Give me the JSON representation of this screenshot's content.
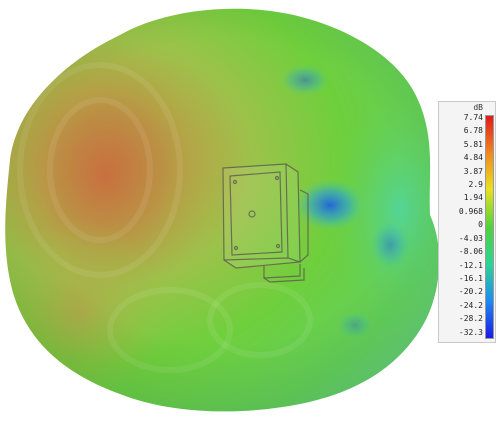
{
  "chart_data": {
    "type": "heatmap",
    "colorbar": {
      "unit": "dB",
      "ticks": [
        "7.74",
        "6.78",
        "5.81",
        "4.84",
        "3.87",
        "2.9",
        "1.94",
        "0.968",
        "0",
        "-4.03",
        "-8.06",
        "-12.1",
        "-16.1",
        "-20.2",
        "-24.2",
        "-28.2",
        "-32.3"
      ],
      "min": -32.3,
      "max": 7.74,
      "colors": [
        "#e2181c",
        "#f08a1e",
        "#e8e21e",
        "#52d23c",
        "#2ad496",
        "#1e8cf0",
        "#1a1ae8"
      ]
    },
    "legend_placement": "right"
  },
  "image": {
    "depicts": "3D far-field radiation pattern surface with device model",
    "colors": {
      "hot_lobe": "#c8743e",
      "mid_surface": "#6fcf3c",
      "cool_notch": "#2e78e0",
      "device_outline": "#6a6a5a"
    }
  }
}
